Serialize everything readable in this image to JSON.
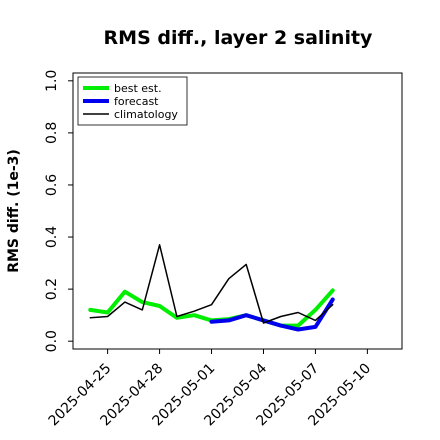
{
  "chart_data": {
    "type": "line",
    "title": "RMS diff., layer 2 salinity",
    "xlabel": "",
    "ylabel": "RMS diff. (1e-3)",
    "xlim": [
      "2025-04-23",
      "2025-05-12"
    ],
    "ylim": [
      -0.03,
      1.03
    ],
    "yticks": [
      "0.0",
      "0.2",
      "0.4",
      "0.6",
      "0.8",
      "1.0"
    ],
    "xticks": [
      {
        "label": "2025-04-25",
        "color": "#000000"
      },
      {
        "label": "2025-04-28",
        "color": "#000000"
      },
      {
        "label": "2025-05-01",
        "color": "#228b22"
      },
      {
        "label": "2025-05-04",
        "color": "#000000"
      },
      {
        "label": "2025-05-07",
        "color": "#000000"
      },
      {
        "label": "2025-05-10",
        "color": "#000000"
      }
    ],
    "legend_position": "top-left",
    "grid": false,
    "series": [
      {
        "name": "best est.",
        "color": "#00ee00",
        "width": 4,
        "x": [
          "2025-04-24",
          "2025-04-25",
          "2025-04-26",
          "2025-04-27",
          "2025-04-28",
          "2025-04-29",
          "2025-04-30",
          "2025-05-01",
          "2025-05-02",
          "2025-05-03",
          "2025-05-04",
          "2025-05-05",
          "2025-05-06",
          "2025-05-07",
          "2025-05-08"
        ],
        "values": [
          0.12,
          0.11,
          0.19,
          0.15,
          0.135,
          0.09,
          0.1,
          0.08,
          0.085,
          0.1,
          0.08,
          0.06,
          0.06,
          0.12,
          0.195
        ]
      },
      {
        "name": "forecast",
        "color": "#0000ee",
        "width": 4,
        "x": [
          "2025-05-01",
          "2025-05-02",
          "2025-05-03",
          "2025-05-04",
          "2025-05-05",
          "2025-05-06",
          "2025-05-07",
          "2025-05-08"
        ],
        "values": [
          0.075,
          0.08,
          0.1,
          0.08,
          0.06,
          0.045,
          0.055,
          0.16
        ]
      },
      {
        "name": "climatology",
        "color": "#000000",
        "width": 1.5,
        "x": [
          "2025-04-24",
          "2025-04-25",
          "2025-04-26",
          "2025-04-27",
          "2025-04-28",
          "2025-04-29",
          "2025-04-30",
          "2025-05-01",
          "2025-05-02",
          "2025-05-03",
          "2025-05-04",
          "2025-05-05",
          "2025-05-06",
          "2025-05-07",
          "2025-05-08"
        ],
        "values": [
          0.09,
          0.095,
          0.15,
          0.12,
          0.37,
          0.095,
          0.115,
          0.14,
          0.24,
          0.295,
          0.07,
          0.095,
          0.11,
          0.08,
          0.14
        ]
      }
    ]
  }
}
